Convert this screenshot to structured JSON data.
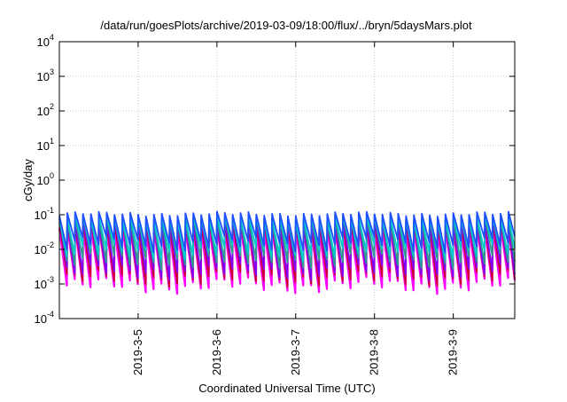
{
  "chart_data": {
    "type": "line",
    "title": "/data/run/goesPlots/archive/2019-03-09/18:00/flux/../bryn/5daysMars.plot",
    "xlabel": "Coordinated Universal Time (UTC)",
    "ylabel": "cGy/day",
    "yscale": "log",
    "ylim": [
      0.0001,
      10000
    ],
    "y_ticks": [
      {
        "base": "10",
        "exp": "4",
        "value": 10000
      },
      {
        "base": "10",
        "exp": "3",
        "value": 1000
      },
      {
        "base": "10",
        "exp": "2",
        "value": 100
      },
      {
        "base": "10",
        "exp": "1",
        "value": 10
      },
      {
        "base": "10",
        "exp": "0",
        "value": 1
      },
      {
        "base": "10",
        "exp": "-1",
        "value": 0.1
      },
      {
        "base": "10",
        "exp": "-2",
        "value": 0.01
      },
      {
        "base": "10",
        "exp": "-3",
        "value": 0.001
      },
      {
        "base": "10",
        "exp": "-4",
        "value": 0.0001
      }
    ],
    "xlim_days": [
      4.0,
      9.78
    ],
    "x_ticks": [
      {
        "label": "2019-3-5",
        "day": 5
      },
      {
        "label": "2019-3-6",
        "day": 6
      },
      {
        "label": "2019-3-7",
        "day": 7
      },
      {
        "label": "2019-3-8",
        "day": 8
      },
      {
        "label": "2019-3-9",
        "day": 9
      }
    ],
    "grid": true,
    "legend": "none",
    "sawtooth_period_days": 0.1,
    "series": [
      {
        "color": "#ff00ff",
        "peak": 0.04,
        "trough": 0.0009
      },
      {
        "color": "#cc0033",
        "peak": 0.055,
        "trough": 0.0014
      },
      {
        "color": "#8000ff",
        "peak": 0.07,
        "trough": 0.0022
      },
      {
        "color": "#2a9d8f",
        "peak": 0.08,
        "trough": 0.0045
      },
      {
        "color": "#00cccc",
        "peak": 0.085,
        "trough": 0.008
      },
      {
        "color": "#1e50ff",
        "peak": 0.105,
        "trough": 0.014
      }
    ]
  }
}
